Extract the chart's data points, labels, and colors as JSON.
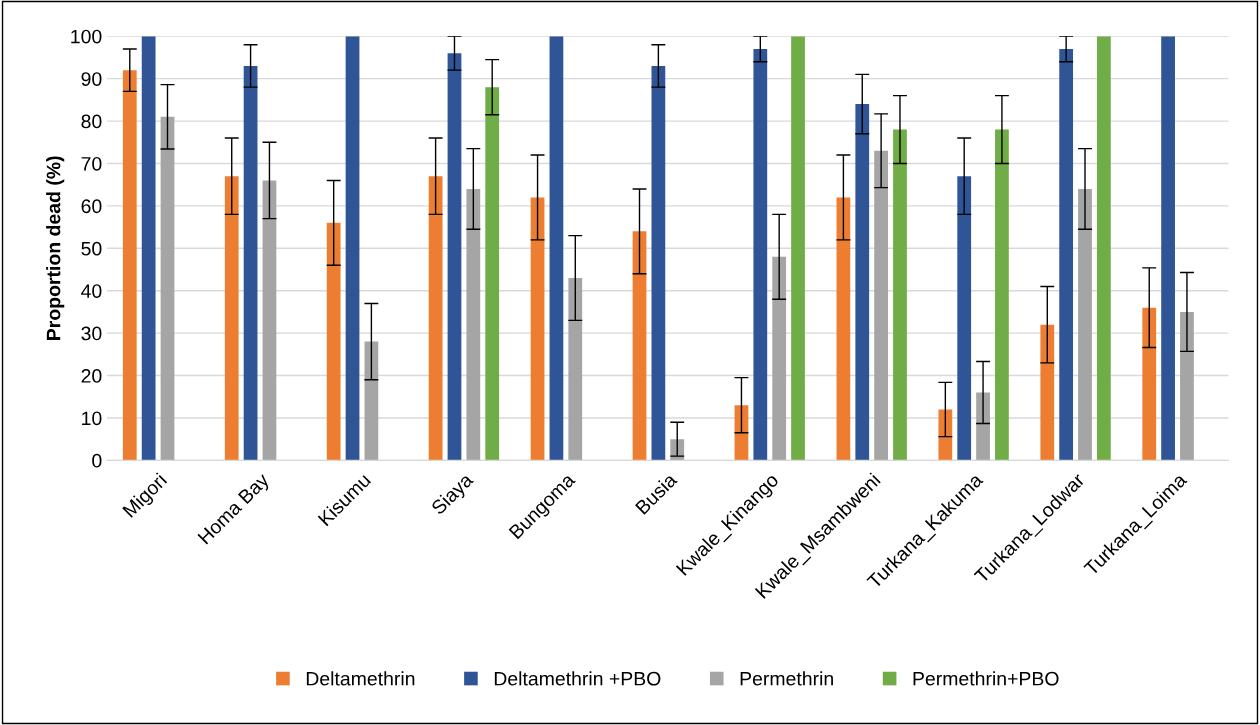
{
  "chart_data": {
    "type": "bar",
    "ylabel": "Proportion dead (%)",
    "categories": [
      "Migori",
      "Homa Bay",
      "Kisumu",
      "Siaya",
      "Bungoma",
      "Busia",
      "Kwale_Kinango",
      "Kwale_Msambweni",
      "Turkana_Kakuma",
      "Turkana_Lodwar",
      "Turkana_Loima"
    ],
    "series": [
      {
        "name": "Deltamethrin",
        "color": "#ed7d31",
        "values": [
          92,
          67,
          56,
          67,
          62,
          54,
          13,
          62,
          12,
          32,
          36
        ],
        "errors": [
          5,
          9,
          10,
          9,
          10,
          10,
          6.5,
          10,
          6.4,
          9,
          9.4
        ]
      },
      {
        "name": "Deltamethrin +PBO",
        "color": "#2f5597",
        "values": [
          100,
          93,
          100,
          96,
          100,
          93,
          97,
          84,
          67,
          97,
          100
        ],
        "errors": [
          null,
          5,
          null,
          4,
          null,
          5,
          3,
          7,
          9,
          3,
          null
        ]
      },
      {
        "name": "Permethrin",
        "color": "#a5a5a5",
        "values": [
          81,
          66,
          28,
          64,
          43,
          5,
          48,
          73,
          16,
          64,
          35
        ],
        "errors": [
          7.6,
          9,
          9,
          9.5,
          10,
          4,
          10,
          8.7,
          7.3,
          9.5,
          9.3
        ]
      },
      {
        "name": "Permethrin+PBO",
        "color": "#70ad47",
        "values": [
          null,
          null,
          null,
          88,
          null,
          null,
          100,
          78,
          78,
          100,
          null
        ],
        "errors": [
          null,
          null,
          null,
          6.5,
          null,
          null,
          null,
          8,
          8,
          null,
          null
        ]
      }
    ],
    "ylim": [
      0,
      100
    ],
    "yticks": [
      0,
      10,
      20,
      30,
      40,
      50,
      60,
      70,
      80,
      90,
      100
    ],
    "grid": "y",
    "legend": "bottom"
  }
}
